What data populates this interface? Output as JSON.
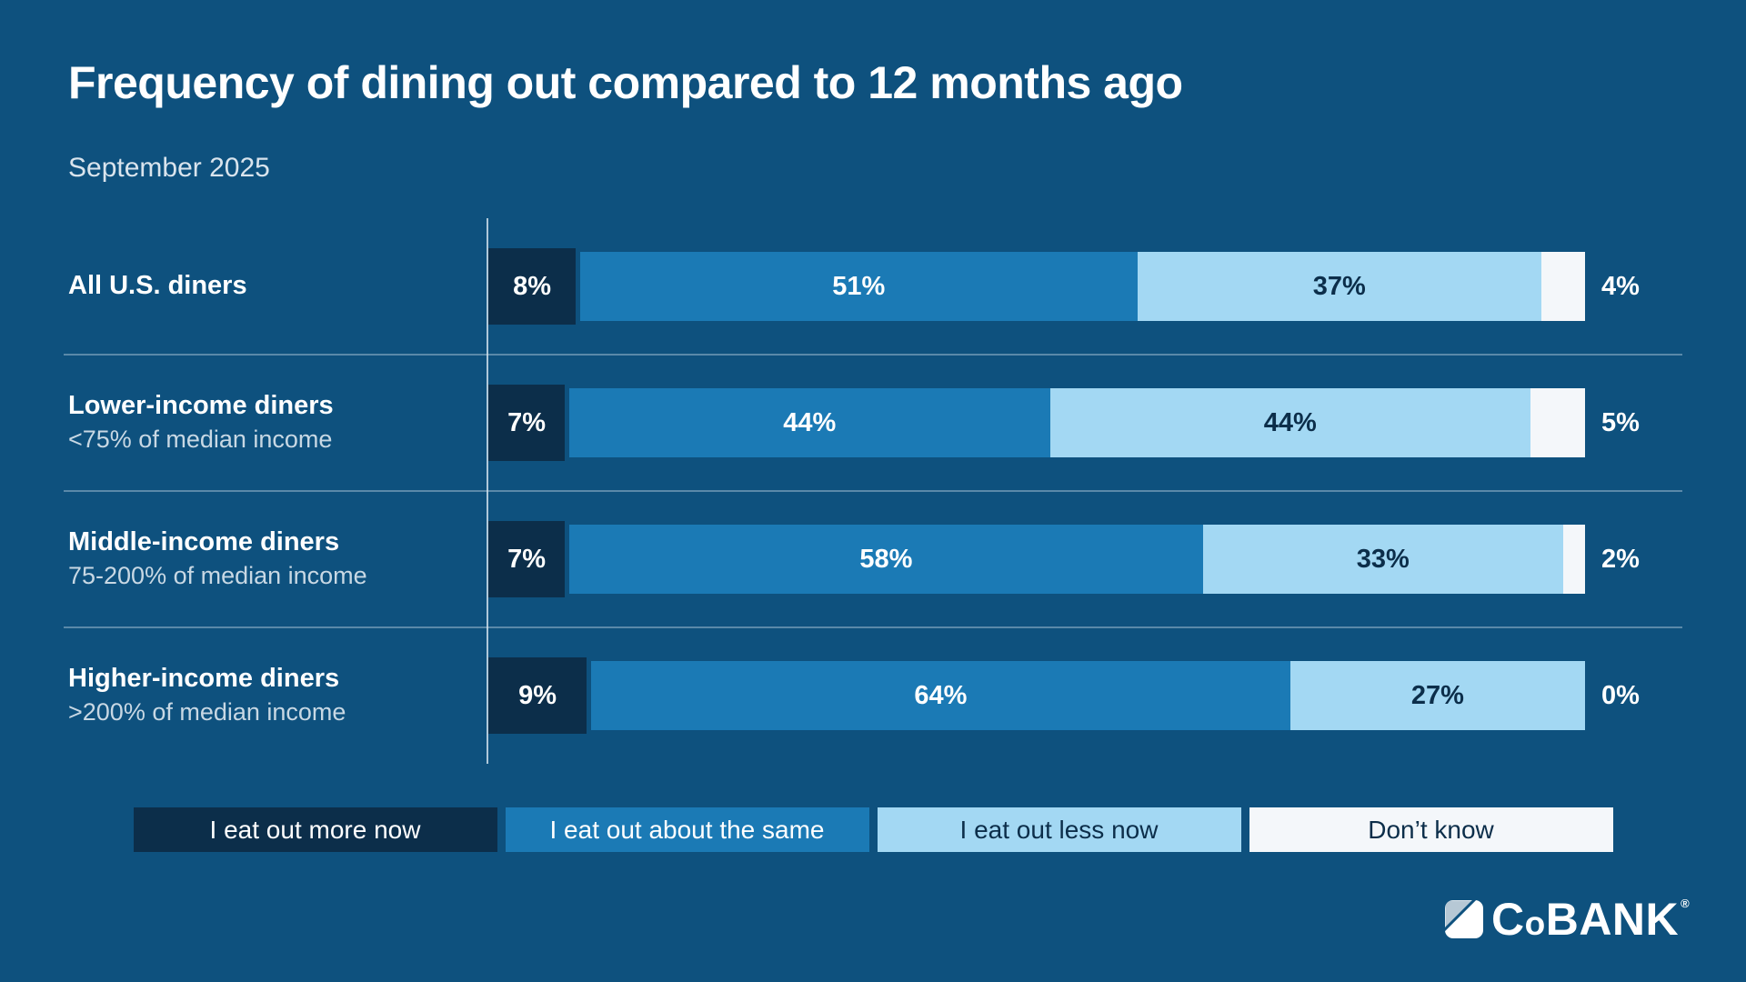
{
  "page": {
    "background": "#0E517E"
  },
  "header": {
    "title": "Frequency of dining out compared to 12 months ago",
    "subtitle": "September 2025"
  },
  "chart_data": {
    "type": "bar",
    "orientation": "horizontal-stacked",
    "value_suffix": "%",
    "xlim": [
      0,
      100
    ],
    "grid": false,
    "legend_position": "bottom",
    "categories": [
      {
        "label": "All U.S. diners",
        "sublabel": ""
      },
      {
        "label": "Lower-income diners",
        "sublabel": "<75% of median income"
      },
      {
        "label": "Middle-income diners",
        "sublabel": "75-200% of median income"
      },
      {
        "label": "Higher-income diners",
        "sublabel": ">200% of median income"
      }
    ],
    "series": [
      {
        "name": "I eat out more now",
        "color": "#0C2E4A",
        "label_color": "#FFFFFF",
        "values": [
          8,
          7,
          7,
          9
        ],
        "label_outside": false
      },
      {
        "name": "I eat out about the same",
        "color": "#1B7AB5",
        "label_color": "#FFFFFF",
        "values": [
          51,
          44,
          58,
          64
        ],
        "label_outside": false
      },
      {
        "name": "I eat out less now",
        "color": "#A3D8F3",
        "label_color": "#0C2E4A",
        "values": [
          37,
          44,
          33,
          27
        ],
        "label_outside": false
      },
      {
        "name": "Don’t know",
        "color": "#F4F7FA",
        "label_color": "#0C2E4A",
        "values": [
          4,
          5,
          2,
          0
        ],
        "label_outside": true
      }
    ]
  },
  "branding": {
    "logo_c": "C",
    "logo_o": "o",
    "logo_rest": "BANK",
    "registered_mark": "®",
    "icon_light_color": "#B6C8D5",
    "icon_white_color": "#FFFFFF",
    "icon_slash_color": "#0E517E"
  }
}
